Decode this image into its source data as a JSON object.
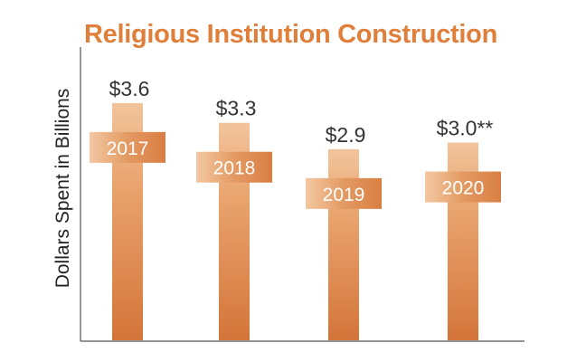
{
  "chart_data": {
    "type": "bar",
    "title": "Religious Institution Construction",
    "xlabel": "",
    "ylabel": "Dollars Spent in Billions",
    "categories": [
      "2017",
      "2018",
      "2019",
      "2020"
    ],
    "values": [
      3.6,
      3.3,
      2.9,
      3.0
    ],
    "value_labels": [
      "$3.6",
      "$3.3",
      "$2.9",
      "$3.0**"
    ],
    "ylim": [
      0,
      4.45
    ],
    "grid": false,
    "legend": "none",
    "colors": {
      "title": "#e07f3a",
      "bar_light": "#f2c49c",
      "bar_dark": "#d4753a",
      "axis": "#555555"
    }
  }
}
